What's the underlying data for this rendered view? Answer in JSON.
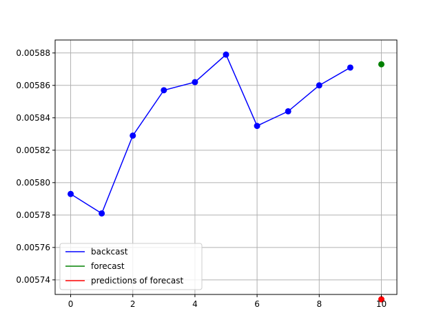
{
  "chart_data": {
    "type": "line",
    "title": "",
    "xlabel": "",
    "ylabel": "",
    "xlim": [
      -0.5,
      10.5
    ],
    "ylim": [
      0.005731,
      0.005888
    ],
    "grid": true,
    "legend_position": "lower-left",
    "x_ticks": [
      0,
      2,
      4,
      6,
      8,
      10
    ],
    "x_tick_labels": [
      "0",
      "2",
      "4",
      "6",
      "8",
      "10"
    ],
    "y_ticks": [
      0.00574,
      0.00576,
      0.00578,
      0.0058,
      0.00582,
      0.00584,
      0.00586,
      0.00588
    ],
    "y_tick_labels": [
      "0.00574",
      "0.00576",
      "0.00578",
      "0.00580",
      "0.00582",
      "0.00584",
      "0.00586",
      "0.00588"
    ],
    "series": [
      {
        "name": "backcast",
        "color": "#0000ff",
        "style": "line+points",
        "x": [
          0,
          1,
          2,
          3,
          4,
          5,
          6,
          7,
          8,
          9
        ],
        "y": [
          0.005793,
          0.005781,
          0.005829,
          0.005857,
          0.005862,
          0.005879,
          0.005835,
          0.005844,
          0.00586,
          0.005871
        ]
      },
      {
        "name": "forecast",
        "color": "#008000",
        "style": "points",
        "x": [
          10
        ],
        "y": [
          0.005873
        ]
      },
      {
        "name": "predictions of forecast",
        "color": "#ff0000",
        "style": "points",
        "x": [
          10
        ],
        "y": [
          0.005728
        ]
      }
    ]
  }
}
